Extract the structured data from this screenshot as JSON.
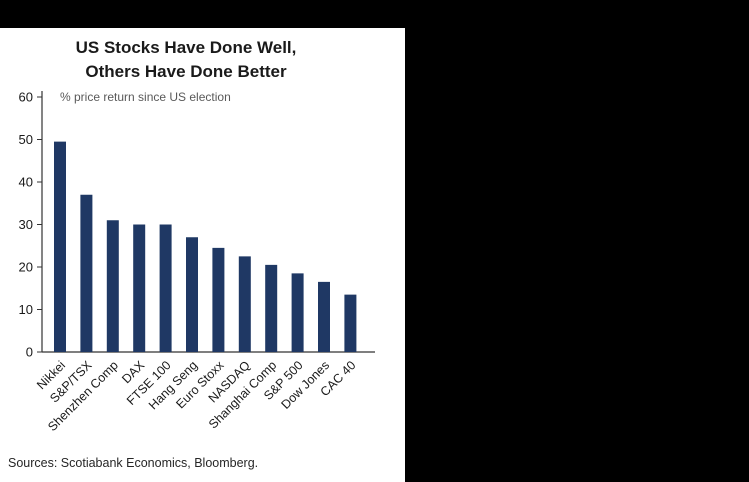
{
  "chart": {
    "title_line1": "US Stocks Have Done Well,",
    "title_line2": "Others Have Done Better",
    "subtitle": "% price return since US election",
    "source": "Sources: Scotiabank Economics, Bloomberg."
  },
  "chart_data": {
    "type": "bar",
    "title": "US Stocks Have Done Well, Others Have Done Better",
    "subtitle": "% price return since US election",
    "categories": [
      "Nikkei",
      "S&P/TSX",
      "Shenzhen Comp",
      "DAX",
      "FTSE 100",
      "Hang Seng",
      "Euro Stoxx",
      "NASDAQ",
      "Shanghai Comp",
      "S&P 500",
      "Dow Jones",
      "CAC 40"
    ],
    "values": [
      49.5,
      37,
      31,
      30,
      30,
      27,
      24.5,
      22.5,
      20.5,
      18.5,
      16.5,
      13.5
    ],
    "xlabel": "",
    "ylabel": "",
    "ylim": [
      0,
      60
    ],
    "yticks": [
      0,
      10,
      20,
      30,
      40,
      50,
      60
    ],
    "grid": false,
    "legend": "none",
    "bar_color": "#1f3864",
    "axis_color": "#333333",
    "tick_label_color": "#1a1a1a",
    "source": "Sources: Scotiabank Economics, Bloomberg."
  }
}
